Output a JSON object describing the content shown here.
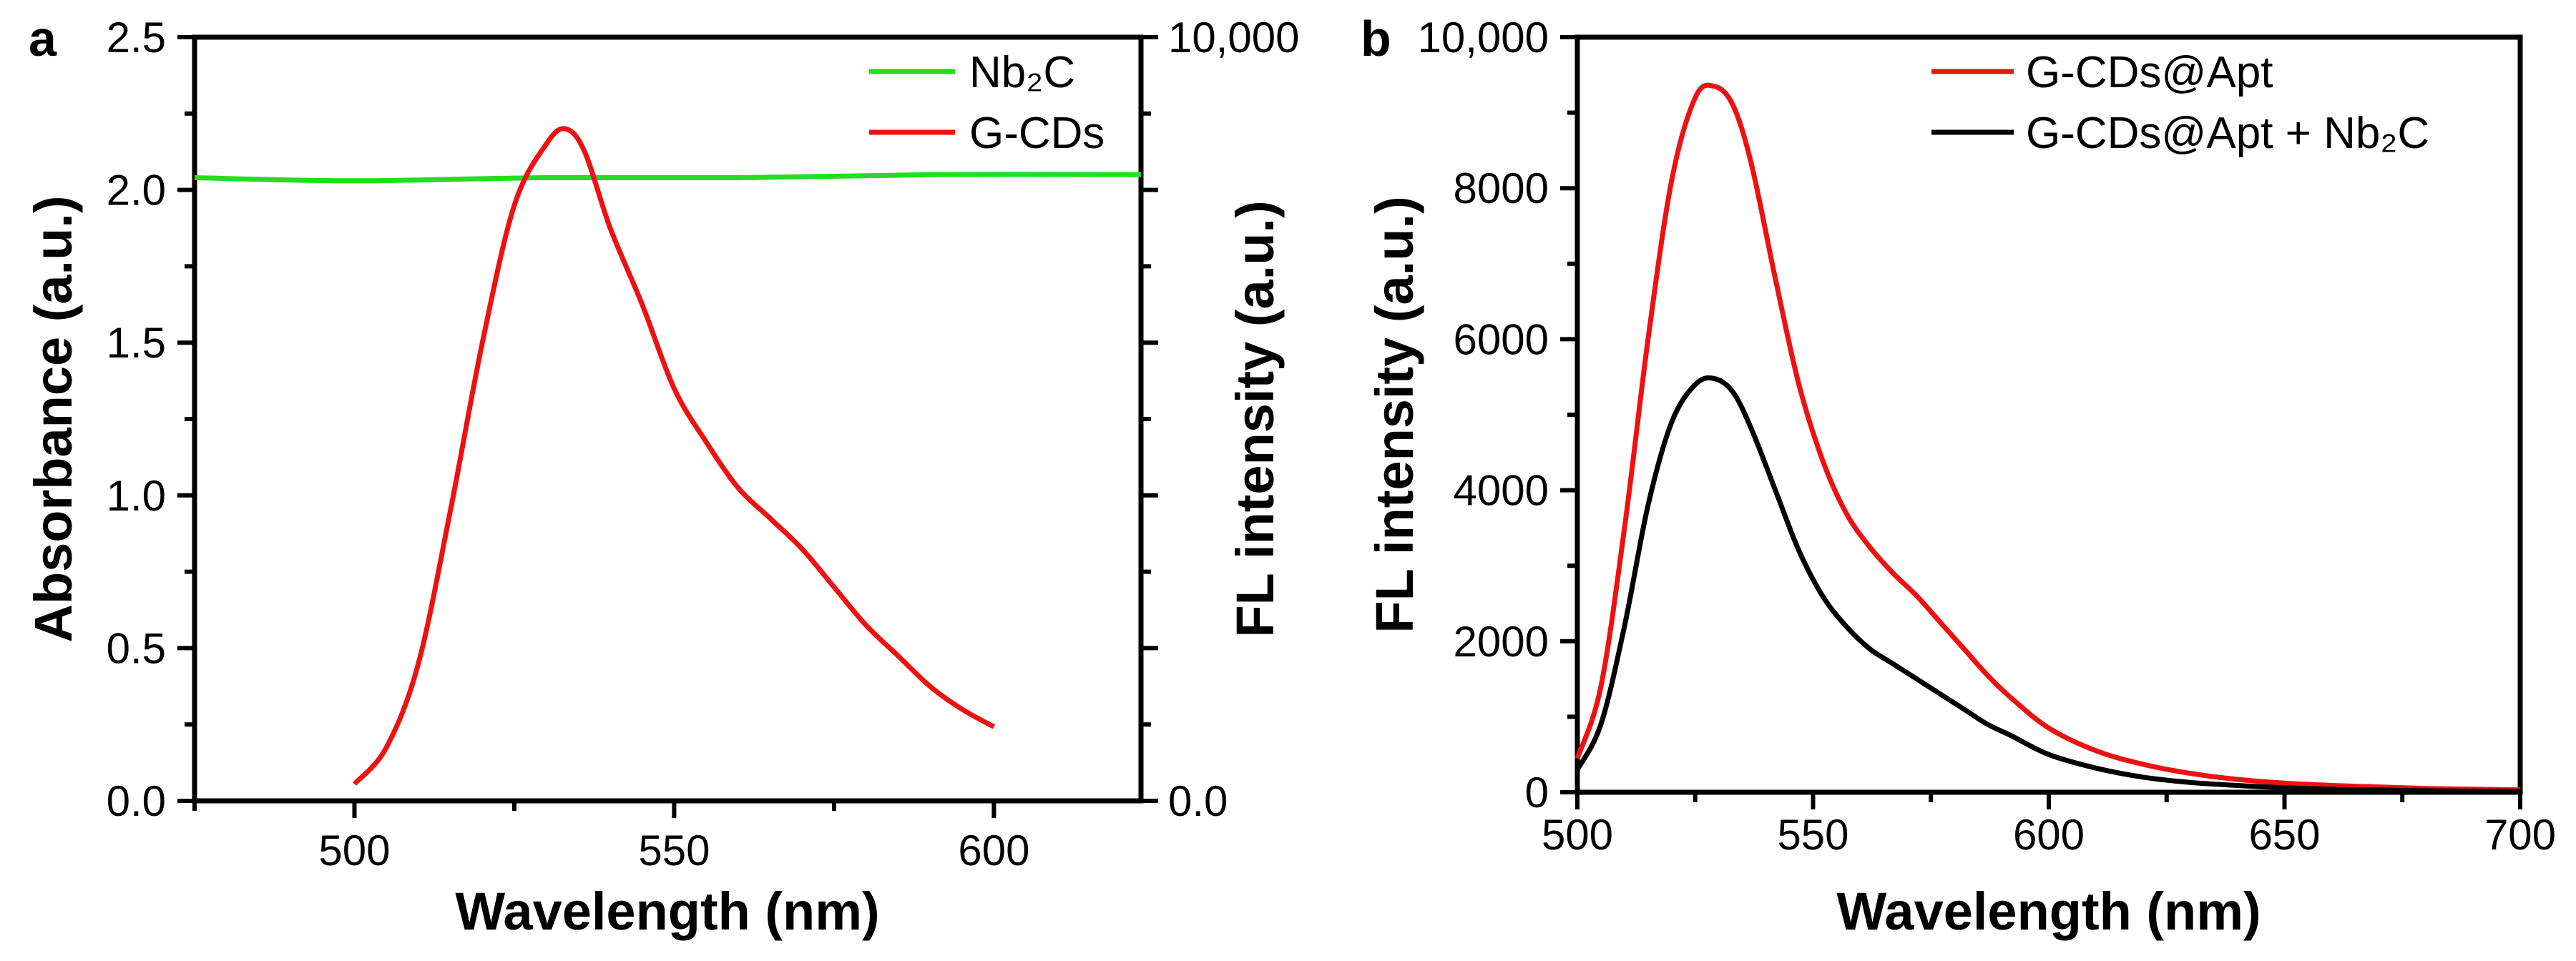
{
  "chart_data": [
    {
      "panel": "a",
      "type": "line",
      "xlabel": "Wavelength (nm)",
      "ylabel_left": "Absorbance (a.u.)",
      "ylabel_right": "FL intensity  (a.u.)",
      "xlim": [
        475,
        623
      ],
      "ylim_left": [
        0,
        2.5
      ],
      "ylim_right": [
        0,
        10000
      ],
      "xticks": [
        500,
        550,
        600
      ],
      "yticks_left": [
        "0.0",
        "0.5",
        "1.0",
        "1.5",
        "2.0",
        "2.5"
      ],
      "yticks_right": [
        "0.0",
        "10,000"
      ],
      "series": [
        {
          "name": "Nb₂C",
          "color": "#22dd22",
          "axis": "left",
          "x": [
            475,
            500,
            530,
            560,
            590,
            623
          ],
          "y": [
            2.04,
            2.03,
            2.04,
            2.04,
            2.05,
            2.05
          ]
        },
        {
          "name": "G-CDs",
          "color": "#ee1111",
          "axis": "right",
          "x": [
            500,
            505,
            510,
            515,
            520,
            525,
            530,
            533,
            536,
            540,
            545,
            550,
            555,
            560,
            565,
            570,
            575,
            580,
            585,
            590,
            595,
            600
          ],
          "y": [
            220,
            700,
            1800,
            3800,
            6000,
            7800,
            8600,
            8800,
            8500,
            7500,
            6500,
            5400,
            4700,
            4100,
            3700,
            3300,
            2800,
            2300,
            1900,
            1500,
            1200,
            970
          ]
        }
      ]
    },
    {
      "panel": "b",
      "type": "line",
      "xlabel": "Wavelength (nm)",
      "ylabel": "FL intensity  (a.u.)",
      "xlim": [
        500,
        700
      ],
      "ylim": [
        0,
        10000
      ],
      "xticks": [
        500,
        550,
        600,
        650,
        700
      ],
      "yticks": [
        "0",
        "2000",
        "4000",
        "6000",
        "8000",
        "10,000"
      ],
      "series": [
        {
          "name": "G-CDs@Apt",
          "color": "#ee1111",
          "x": [
            500,
            505,
            510,
            515,
            520,
            525,
            529,
            533,
            537,
            542,
            547,
            552,
            557,
            562,
            567,
            572,
            577,
            582,
            587,
            592,
            600,
            610,
            620,
            630,
            640,
            650,
            660,
            670,
            680,
            690,
            700
          ],
          "y": [
            450,
            1400,
            3500,
            6000,
            8100,
            9200,
            9350,
            9100,
            8300,
            6800,
            5400,
            4400,
            3700,
            3250,
            2900,
            2600,
            2250,
            1900,
            1550,
            1250,
            850,
            550,
            370,
            250,
            170,
            120,
            90,
            70,
            50,
            40,
            30
          ]
        },
        {
          "name": "G-CDs@Apt + Nb₂C",
          "color": "#000000",
          "x": [
            500,
            505,
            510,
            515,
            520,
            525,
            529,
            533,
            537,
            542,
            547,
            552,
            557,
            562,
            567,
            572,
            577,
            582,
            587,
            592,
            600,
            610,
            620,
            630,
            640,
            650,
            660,
            670,
            680,
            690,
            700
          ],
          "y": [
            300,
            900,
            2200,
            3800,
            4900,
            5400,
            5480,
            5300,
            4800,
            4000,
            3200,
            2600,
            2200,
            1900,
            1700,
            1500,
            1300,
            1100,
            900,
            750,
            500,
            320,
            200,
            130,
            90,
            60,
            40,
            30,
            20,
            15,
            10
          ]
        }
      ]
    }
  ]
}
